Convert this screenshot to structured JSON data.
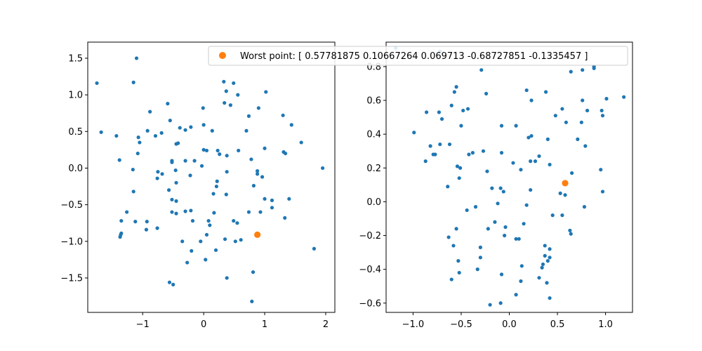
{
  "colors": {
    "series": "#1f77b4",
    "highlight": "#ff7f0e",
    "axis": "#000000",
    "background": "#ffffff"
  },
  "legend": {
    "label": "Worst point: [ 0.57781875  0.10667264  0.069713   -0.68727851 -0.1335457 ]",
    "location": "top-right of right panel"
  },
  "chart_data": [
    {
      "type": "scatter",
      "xlim": [
        -1.9,
        2.15
      ],
      "ylim": [
        -1.97,
        1.72
      ],
      "xticks": [
        -1,
        0,
        1,
        2
      ],
      "yticks": [
        -1.5,
        -1.0,
        -0.5,
        0.0,
        0.5,
        1.0,
        1.5
      ],
      "xtick_labels": [
        "−1",
        "0",
        "1",
        "2"
      ],
      "ytick_labels": [
        "−1.5",
        "−1.0",
        "−0.5",
        "0.0",
        "0.5",
        "1.0",
        "1.5"
      ],
      "grid": false,
      "points": [
        [
          -1.75,
          1.16
        ],
        [
          -1.1,
          1.5
        ],
        [
          -1.15,
          1.17
        ],
        [
          -1.68,
          0.49
        ],
        [
          -1.43,
          0.44
        ],
        [
          -1.38,
          0.11
        ],
        [
          -1.05,
          0.35
        ],
        [
          -1.07,
          0.42
        ],
        [
          -0.92,
          0.51
        ],
        [
          -0.88,
          0.77
        ],
        [
          -0.59,
          0.88
        ],
        [
          -0.55,
          0.65
        ],
        [
          -0.45,
          0.33
        ],
        [
          -0.42,
          0.34
        ],
        [
          -0.39,
          0.55
        ],
        [
          -0.3,
          0.52
        ],
        [
          -0.21,
          0.56
        ],
        [
          0.0,
          0.59
        ],
        [
          -0.01,
          0.82
        ],
        [
          0.14,
          0.51
        ],
        [
          0.33,
          1.18
        ],
        [
          0.37,
          1.05
        ],
        [
          0.49,
          1.16
        ],
        [
          0.56,
          1.0
        ],
        [
          0.34,
          0.89
        ],
        [
          0.44,
          0.86
        ],
        [
          0.7,
          0.51
        ],
        [
          0.74,
          0.71
        ],
        [
          0.9,
          0.82
        ],
        [
          1.02,
          1.04
        ],
        [
          1.3,
          0.72
        ],
        [
          1.44,
          0.59
        ],
        [
          1.6,
          0.35
        ],
        [
          1.95,
          0.0
        ],
        [
          1.31,
          0.22
        ],
        [
          1.34,
          0.2
        ],
        [
          1.0,
          0.27
        ],
        [
          0.57,
          0.24
        ],
        [
          0.78,
          0.12
        ],
        [
          0.88,
          -0.04
        ],
        [
          0.88,
          -0.08
        ],
        [
          0.96,
          -0.12
        ],
        [
          0.82,
          -0.24
        ],
        [
          1.0,
          -0.42
        ],
        [
          1.12,
          -0.44
        ],
        [
          1.12,
          -0.54
        ],
        [
          1.4,
          -0.42
        ],
        [
          1.33,
          -0.68
        ],
        [
          1.81,
          -1.1
        ],
        [
          0.88,
          -0.91
        ],
        [
          0.93,
          -0.6
        ],
        [
          0.74,
          -0.6
        ],
        [
          0.55,
          -0.75
        ],
        [
          0.49,
          -0.72
        ],
        [
          0.61,
          -0.98
        ],
        [
          0.52,
          -1.0
        ],
        [
          0.38,
          -1.5
        ],
        [
          0.81,
          -1.42
        ],
        [
          0.79,
          -1.82
        ],
        [
          0.2,
          -1.12
        ],
        [
          0.35,
          -0.97
        ],
        [
          0.05,
          -0.91
        ],
        [
          0.08,
          -0.72
        ],
        [
          0.1,
          -0.78
        ],
        [
          0.17,
          -0.61
        ],
        [
          0.37,
          -0.36
        ],
        [
          0.38,
          -0.05
        ],
        [
          0.16,
          -0.35
        ],
        [
          0.21,
          -0.25
        ],
        [
          0.22,
          -0.18
        ],
        [
          0.05,
          0.24
        ],
        [
          0.0,
          0.25
        ],
        [
          0.23,
          0.24
        ],
        [
          0.26,
          0.19
        ],
        [
          0.38,
          0.17
        ],
        [
          -0.03,
          0.03
        ],
        [
          -0.15,
          0.1
        ],
        [
          -0.22,
          -0.1
        ],
        [
          -0.3,
          0.1
        ],
        [
          -0.52,
          0.08
        ],
        [
          -0.52,
          0.1
        ],
        [
          -0.46,
          -0.03
        ],
        [
          -0.45,
          -0.2
        ],
        [
          -0.68,
          -0.08
        ],
        [
          -0.75,
          -0.05
        ],
        [
          -0.76,
          -0.14
        ],
        [
          -0.57,
          -0.3
        ],
        [
          -0.45,
          -0.45
        ],
        [
          -0.52,
          -0.43
        ],
        [
          -0.52,
          -0.6
        ],
        [
          -0.45,
          -0.62
        ],
        [
          -0.3,
          -0.59
        ],
        [
          -0.21,
          -0.58
        ],
        [
          -0.18,
          -0.72
        ],
        [
          -0.35,
          -1.0
        ],
        [
          -0.2,
          -1.13
        ],
        [
          -0.05,
          -1.0
        ],
        [
          -0.27,
          -1.29
        ],
        [
          0.03,
          -1.25
        ],
        [
          -0.5,
          -1.59
        ],
        [
          -0.56,
          -1.56
        ],
        [
          -0.76,
          -0.82
        ],
        [
          -0.94,
          -0.84
        ],
        [
          -1.12,
          -0.73
        ],
        [
          -0.93,
          -0.73
        ],
        [
          -1.26,
          -0.6
        ],
        [
          -1.35,
          -0.72
        ],
        [
          -1.35,
          -0.89
        ],
        [
          -1.36,
          -0.91
        ],
        [
          -1.37,
          -0.94
        ],
        [
          -1.15,
          -0.32
        ],
        [
          -1.16,
          -0.02
        ],
        [
          -1.08,
          0.2
        ],
        [
          -0.69,
          0.48
        ],
        [
          -0.79,
          0.44
        ]
      ],
      "highlight": [
        0.88,
        -0.91
      ]
    },
    {
      "type": "scatter",
      "xlim": [
        -1.28,
        1.28
      ],
      "ylim": [
        -0.655,
        0.945
      ],
      "xticks": [
        -1.0,
        -0.5,
        0.0,
        0.5,
        1.0
      ],
      "yticks": [
        -0.6,
        -0.4,
        -0.2,
        0.0,
        0.2,
        0.4,
        0.6,
        0.8
      ],
      "xtick_labels": [
        "−1.0",
        "−0.5",
        "0.0",
        "0.5",
        "1.0"
      ],
      "ytick_labels": [
        "−0.6",
        "−0.4",
        "−0.2",
        "0.0",
        "0.2",
        "0.4",
        "0.6",
        "0.8"
      ],
      "grid": false,
      "points": [
        [
          -1.18,
          0.91
        ],
        [
          -0.72,
          0.89
        ],
        [
          -0.99,
          0.41
        ],
        [
          -0.86,
          0.53
        ],
        [
          -0.73,
          0.53
        ],
        [
          -0.7,
          0.49
        ],
        [
          -0.6,
          0.57
        ],
        [
          -0.57,
          0.65
        ],
        [
          -0.55,
          0.68
        ],
        [
          -0.48,
          0.54
        ],
        [
          -0.43,
          0.55
        ],
        [
          -0.5,
          0.45
        ],
        [
          -0.87,
          0.24
        ],
        [
          -0.82,
          0.33
        ],
        [
          -0.79,
          0.28
        ],
        [
          -0.77,
          0.28
        ],
        [
          -0.72,
          0.34
        ],
        [
          -0.62,
          0.34
        ],
        [
          -0.54,
          0.21
        ],
        [
          -0.51,
          0.2
        ],
        [
          -0.52,
          0.14
        ],
        [
          -0.42,
          0.28
        ],
        [
          -0.38,
          0.29
        ],
        [
          -0.27,
          0.3
        ],
        [
          -0.24,
          0.64
        ],
        [
          -0.29,
          0.78
        ],
        [
          -0.08,
          0.45
        ],
        [
          -0.08,
          0.29
        ],
        [
          0.04,
          0.23
        ],
        [
          0.07,
          0.45
        ],
        [
          0.18,
          0.66
        ],
        [
          0.23,
          0.6
        ],
        [
          0.2,
          0.38
        ],
        [
          0.23,
          0.39
        ],
        [
          0.27,
          0.24
        ],
        [
          0.31,
          0.27
        ],
        [
          0.38,
          0.65
        ],
        [
          0.48,
          0.51
        ],
        [
          0.55,
          0.55
        ],
        [
          0.64,
          0.77
        ],
        [
          0.76,
          0.78
        ],
        [
          0.88,
          0.79
        ],
        [
          0.88,
          0.8
        ],
        [
          1.01,
          0.61
        ],
        [
          1.19,
          0.62
        ],
        [
          0.76,
          0.6
        ],
        [
          0.75,
          0.47
        ],
        [
          0.81,
          0.54
        ],
        [
          0.96,
          0.54
        ],
        [
          0.97,
          0.51
        ],
        [
          0.95,
          0.19
        ],
        [
          0.79,
          0.33
        ],
        [
          0.71,
          0.37
        ],
        [
          0.59,
          0.47
        ],
        [
          0.42,
          0.22
        ],
        [
          0.4,
          0.37
        ],
        [
          0.22,
          0.24
        ],
        [
          0.12,
          0.19
        ],
        [
          0.22,
          0.07
        ],
        [
          0.65,
          0.17
        ],
        [
          0.58,
          0.04
        ],
        [
          0.53,
          0.05
        ],
        [
          0.63,
          -0.17
        ],
        [
          0.64,
          -0.19
        ],
        [
          0.78,
          -0.03
        ],
        [
          0.97,
          0.06
        ],
        [
          0.55,
          -0.08
        ],
        [
          0.45,
          -0.08
        ],
        [
          0.42,
          -0.28
        ],
        [
          0.37,
          -0.26
        ],
        [
          0.37,
          -0.32
        ],
        [
          0.4,
          -0.35
        ],
        [
          0.42,
          -0.33
        ],
        [
          0.35,
          -0.37
        ],
        [
          0.34,
          -0.39
        ],
        [
          0.31,
          -0.45
        ],
        [
          0.39,
          -0.48
        ],
        [
          0.42,
          -0.57
        ],
        [
          0.13,
          -0.38
        ],
        [
          0.12,
          -0.47
        ],
        [
          0.07,
          -0.55
        ],
        [
          0.07,
          -0.22
        ],
        [
          0.1,
          -0.22
        ],
        [
          0.15,
          -0.13
        ],
        [
          0.18,
          -0.02
        ],
        [
          -0.04,
          -0.15
        ],
        [
          -0.05,
          -0.2
        ],
        [
          -0.06,
          0.06
        ],
        [
          -0.09,
          0.08
        ],
        [
          -0.12,
          -0.01
        ],
        [
          -0.18,
          0.08
        ],
        [
          -0.23,
          0.18
        ],
        [
          -0.22,
          -0.16
        ],
        [
          -0.15,
          -0.12
        ],
        [
          -0.08,
          -0.43
        ],
        [
          -0.2,
          -0.61
        ],
        [
          -0.09,
          -0.6
        ],
        [
          -0.3,
          -0.27
        ],
        [
          -0.3,
          -0.33
        ],
        [
          -0.33,
          -0.4
        ],
        [
          -0.35,
          -0.03
        ],
        [
          -0.44,
          -0.05
        ],
        [
          -0.55,
          -0.16
        ],
        [
          -0.58,
          -0.26
        ],
        [
          -0.6,
          -0.46
        ],
        [
          -0.53,
          -0.35
        ],
        [
          -0.52,
          -0.42
        ],
        [
          -0.63,
          -0.21
        ],
        [
          -0.64,
          0.09
        ]
      ],
      "highlight": [
        0.58,
        0.11
      ]
    }
  ]
}
